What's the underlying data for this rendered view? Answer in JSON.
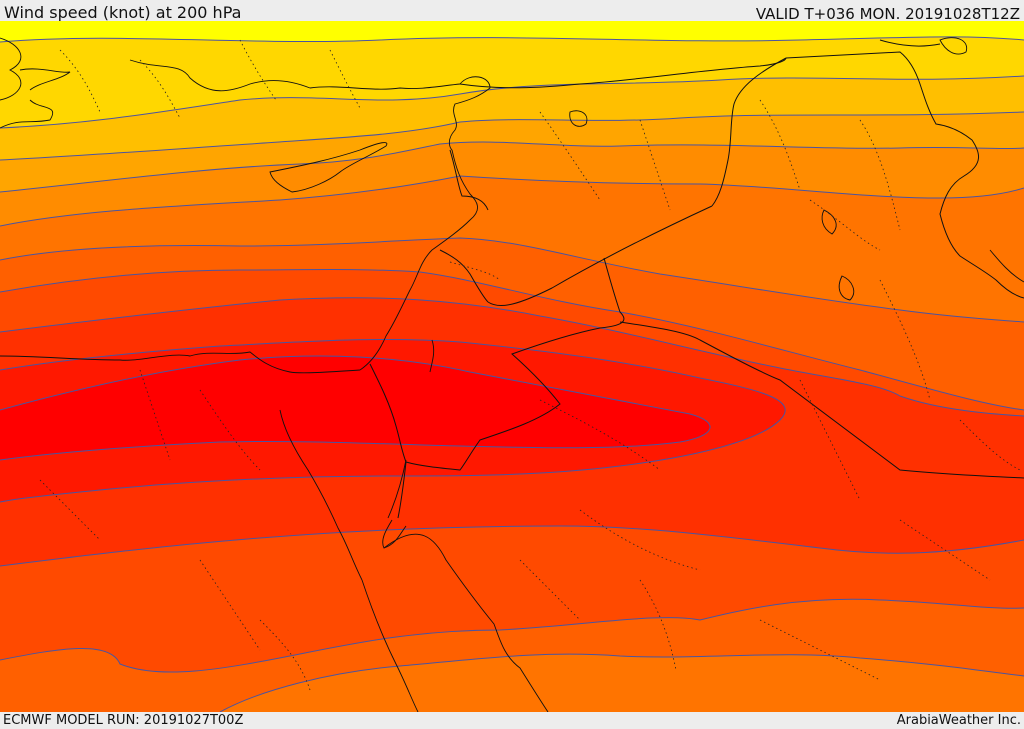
{
  "header": {
    "title": "Wind speed (knot) at 200 hPa",
    "valid_time": "VALID T+036 MON. 20191028T12Z"
  },
  "footer": {
    "model_run": "ECMWF MODEL RUN: 20191027T00Z",
    "credit": "ArabiaWeather Inc."
  },
  "map": {
    "variable": "wind speed",
    "level": "200 hPa",
    "unit": "knot",
    "shading_colors": [
      "#ffff00",
      "#ffd700",
      "#ffbf00",
      "#ffa500",
      "#ff8c00",
      "#ff7400",
      "#ff6000",
      "#ff4a00",
      "#ff3000",
      "#ff1800",
      "#ff0000"
    ],
    "contour_color": "#4b54a0"
  }
}
